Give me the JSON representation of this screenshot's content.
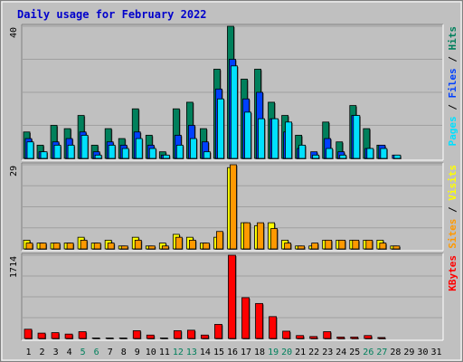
{
  "chart_data": {
    "type": "bar",
    "title": "Daily usage for February 2022",
    "x": [
      "1",
      "2",
      "3",
      "4",
      "5",
      "6",
      "7",
      "8",
      "9",
      "10",
      "11",
      "12",
      "13",
      "14",
      "15",
      "16",
      "17",
      "18",
      "19",
      "20",
      "21",
      "22",
      "23",
      "24",
      "25",
      "26",
      "27",
      "28",
      "29",
      "30",
      "31"
    ],
    "weekend_days": [
      "5",
      "6",
      "12",
      "13",
      "19",
      "20",
      "26",
      "27"
    ],
    "colors": {
      "background": "#ffffff",
      "frame": "#c0c0c0",
      "plot_bg": "#c0c0c0",
      "grid": "#a0a0a0",
      "title": "#0000cc",
      "weekday_label": "#000000",
      "weekend_label": "#00805c",
      "hits": "#00805c",
      "files": "#0040ff",
      "pages": "#00e0ff",
      "visits": "#ffff00",
      "sites": "#ff9900",
      "kbytes": "#ff0000"
    },
    "panels": [
      {
        "id": "hits-files-pages",
        "max_label": "40",
        "ylim": [
          0,
          40
        ],
        "legend": [
          {
            "text": "Pages",
            "color": "#00e0ff"
          },
          {
            "text": " / ",
            "color": "#000000"
          },
          {
            "text": "Files",
            "color": "#0040ff"
          },
          {
            "text": " / ",
            "color": "#000000"
          },
          {
            "text": "Hits",
            "color": "#00805c"
          }
        ],
        "series": [
          {
            "name": "Hits",
            "color": "#00805c",
            "values": [
              8,
              4,
              10,
              9,
              13,
              4,
              9,
              6,
              15,
              7,
              2,
              15,
              17,
              9,
              27,
              40,
              24,
              27,
              17,
              13,
              7,
              0,
              11,
              5,
              16,
              9,
              4,
              0,
              0,
              0,
              0
            ]
          },
          {
            "name": "Files",
            "color": "#0040ff",
            "values": [
              6,
              2,
              5,
              6,
              8,
              2,
              5,
              4,
              8,
              4,
              1,
              7,
              10,
              5,
              21,
              30,
              18,
              20,
              12,
              8,
              3,
              2,
              6,
              2,
              13,
              3,
              4,
              1,
              0,
              0,
              0
            ]
          },
          {
            "name": "Pages",
            "color": "#00e0ff",
            "values": [
              5,
              2,
              4,
              4,
              7,
              1,
              4,
              3,
              6,
              3,
              1,
              4,
              6,
              2,
              18,
              28,
              14,
              12,
              12,
              11,
              4,
              1,
              3,
              1,
              13,
              3,
              3,
              1,
              0,
              0,
              0
            ]
          }
        ]
      },
      {
        "id": "visits-sites",
        "max_label": "29",
        "ylim": [
          0,
          29
        ],
        "legend": [
          {
            "text": "Sites",
            "color": "#ff9900"
          },
          {
            "text": " / ",
            "color": "#000000"
          },
          {
            "text": "Visits",
            "color": "#ffff00"
          }
        ],
        "series": [
          {
            "name": "Visits",
            "color": "#ffff00",
            "values": [
              3,
              2,
              2,
              2,
              4,
              2,
              3,
              1,
              4,
              1,
              2,
              5,
              4,
              2,
              4,
              28,
              9,
              8,
              9,
              3,
              1,
              1,
              3,
              3,
              3,
              3,
              3,
              1,
              0,
              0,
              0
            ]
          },
          {
            "name": "Sites",
            "color": "#ff9900",
            "values": [
              2,
              2,
              2,
              2,
              3,
              2,
              2,
              1,
              3,
              1,
              1,
              4,
              3,
              2,
              6,
              29,
              9,
              9,
              7,
              2,
              1,
              2,
              3,
              3,
              3,
              3,
              2,
              1,
              0,
              0,
              0
            ]
          }
        ]
      },
      {
        "id": "kbytes",
        "max_label": "1714",
        "ylim": [
          0,
          1714
        ],
        "legend": [
          {
            "text": "KBytes",
            "color": "#ff0000"
          }
        ],
        "series": [
          {
            "name": "KBytes",
            "color": "#ff0000",
            "values": [
              190,
              110,
              120,
              90,
              140,
              10,
              10,
              10,
              160,
              70,
              10,
              160,
              170,
              70,
              290,
              1714,
              840,
              720,
              450,
              150,
              60,
              40,
              140,
              30,
              30,
              60,
              20,
              0,
              0,
              0,
              0
            ]
          }
        ]
      }
    ]
  }
}
